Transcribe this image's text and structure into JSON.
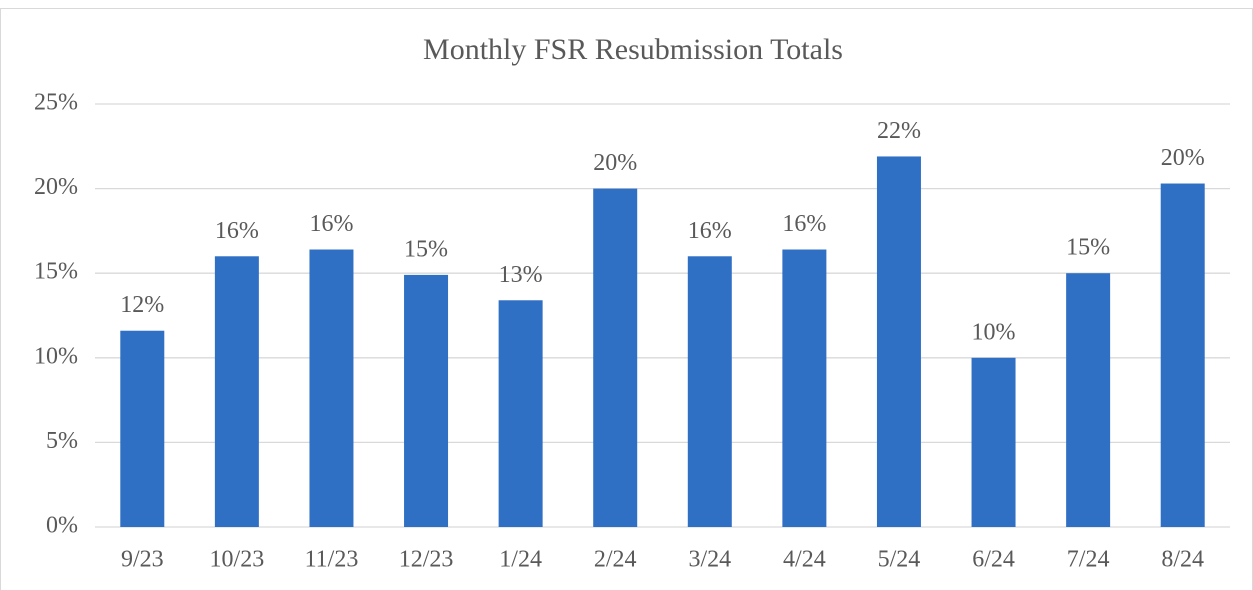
{
  "chart_data": {
    "type": "bar",
    "title": "Monthly FSR Resubmission Totals",
    "categories": [
      "9/23",
      "10/23",
      "11/23",
      "12/23",
      "1/24",
      "2/24",
      "3/24",
      "4/24",
      "5/24",
      "6/24",
      "7/24",
      "8/24"
    ],
    "values": [
      11.6,
      16.0,
      16.4,
      14.9,
      13.4,
      20.0,
      16.0,
      16.4,
      21.9,
      10.0,
      15.0,
      20.3
    ],
    "value_labels": [
      "12%",
      "16%",
      "16%",
      "15%",
      "13%",
      "20%",
      "16%",
      "16%",
      "22%",
      "10%",
      "15%",
      "20%"
    ],
    "color": "#3070c4",
    "ylim": [
      0,
      25
    ],
    "yticks": [
      {
        "value": 0,
        "label": "0%"
      },
      {
        "value": 5,
        "label": "5%"
      },
      {
        "value": 10,
        "label": "10%"
      },
      {
        "value": 15,
        "label": "15%"
      },
      {
        "value": 20,
        "label": "20%"
      },
      {
        "value": 25,
        "label": "25%"
      }
    ],
    "grid": true
  }
}
